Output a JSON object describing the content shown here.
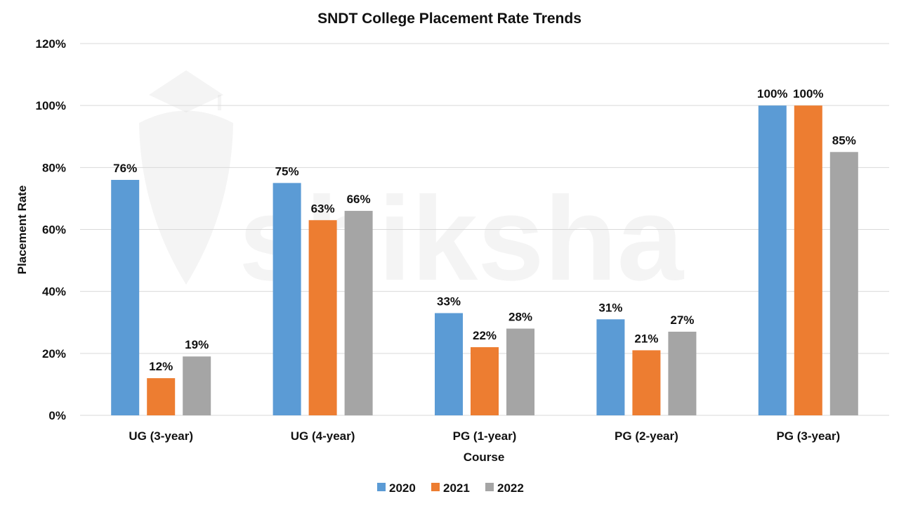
{
  "watermark": {
    "text": "shiksha",
    "icon": "graduation-cap-icon"
  },
  "chart_data": {
    "type": "bar",
    "title": "SNDT College Placement Rate Trends",
    "xlabel": "Course",
    "ylabel": "Placement Rate",
    "categories": [
      "UG (3-year)",
      "UG (4-year)",
      "PG (1-year)",
      "PG (2-year)",
      "PG (3-year)"
    ],
    "series": [
      {
        "name": "2020",
        "color": "#5b9bd5",
        "values": [
          76,
          75,
          33,
          31,
          100
        ]
      },
      {
        "name": "2021",
        "color": "#ed7d31",
        "values": [
          12,
          63,
          22,
          21,
          100
        ]
      },
      {
        "name": "2022",
        "color": "#a5a5a5",
        "values": [
          19,
          66,
          28,
          27,
          85
        ]
      }
    ],
    "ylim": [
      0,
      120
    ],
    "yticks": [
      0,
      20,
      40,
      60,
      80,
      100,
      120
    ],
    "ytick_labels": [
      "0%",
      "20%",
      "40%",
      "60%",
      "80%",
      "100%",
      "120%"
    ],
    "data_labels": [
      [
        "76%",
        "75%",
        "33%",
        "31%",
        "100%"
      ],
      [
        "12%",
        "63%",
        "22%",
        "21%",
        "100%"
      ],
      [
        "19%",
        "66%",
        "28%",
        "27%",
        "85%"
      ]
    ],
    "grid": true,
    "legend": "bottom-center"
  }
}
